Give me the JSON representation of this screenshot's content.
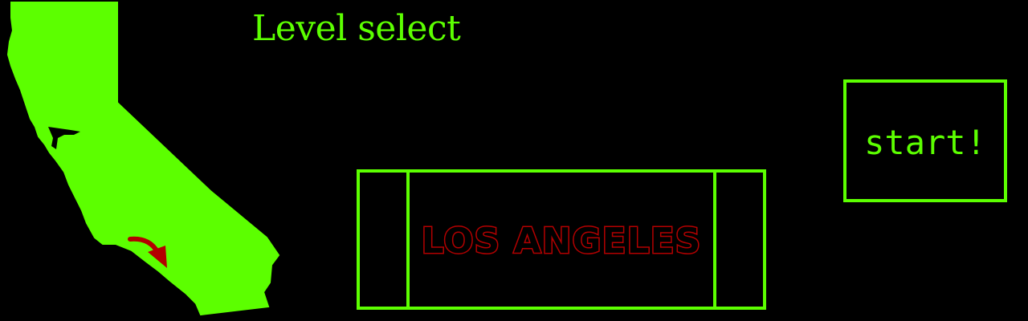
{
  "screen": {
    "title": "Level select"
  },
  "level_selector": {
    "selected_city": "LOS ANGELES"
  },
  "start_button": {
    "label": "start!"
  },
  "map": {
    "region": "california-map",
    "marker": "arrow-icon"
  },
  "colors": {
    "background": "#000000",
    "accent_green": "#5cff00",
    "city_red": "#b30000"
  }
}
